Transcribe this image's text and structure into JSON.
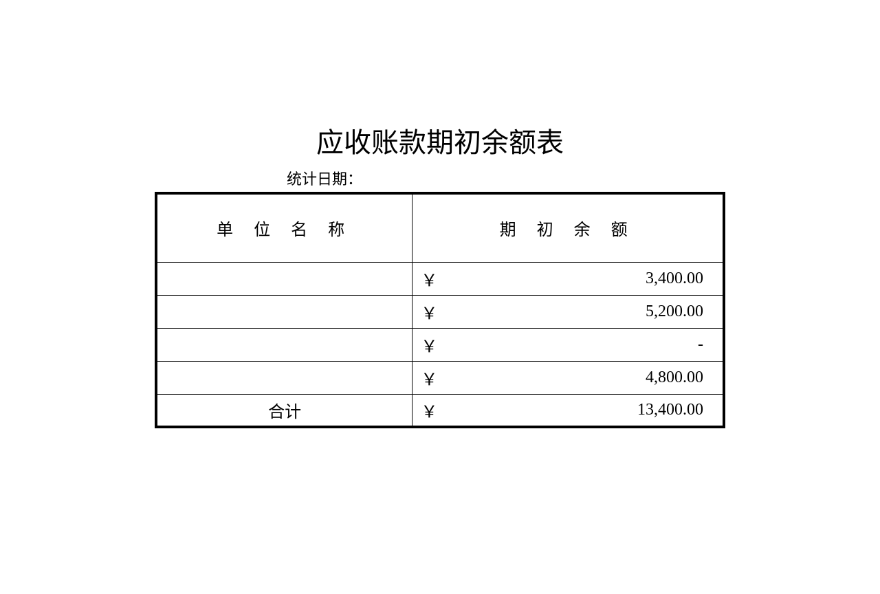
{
  "title": "应收账款期初余额表",
  "subtitle": "统计日期：",
  "table": {
    "columns": [
      "单 位 名 称",
      "期 初 余 额"
    ],
    "currency_symbol": "￥",
    "rows": [
      {
        "name": "",
        "amount": "3,400.00"
      },
      {
        "name": "",
        "amount": "5,200.00"
      },
      {
        "name": "",
        "amount": "-"
      },
      {
        "name": "",
        "amount": "4,800.00"
      }
    ],
    "total": {
      "label": "合计",
      "amount": "13,400.00"
    }
  },
  "styling": {
    "background_color": "#ffffff",
    "text_color": "#000000",
    "border_color": "#000000",
    "outer_border_width": 4,
    "inner_border_width": 1,
    "title_fontsize": 40,
    "subtitle_fontsize": 22,
    "cell_fontsize": 24,
    "header_row_height": 100,
    "data_row_height": 48,
    "col_name_width": 375,
    "col_amount_width": 455,
    "font_family": "SimSun"
  }
}
